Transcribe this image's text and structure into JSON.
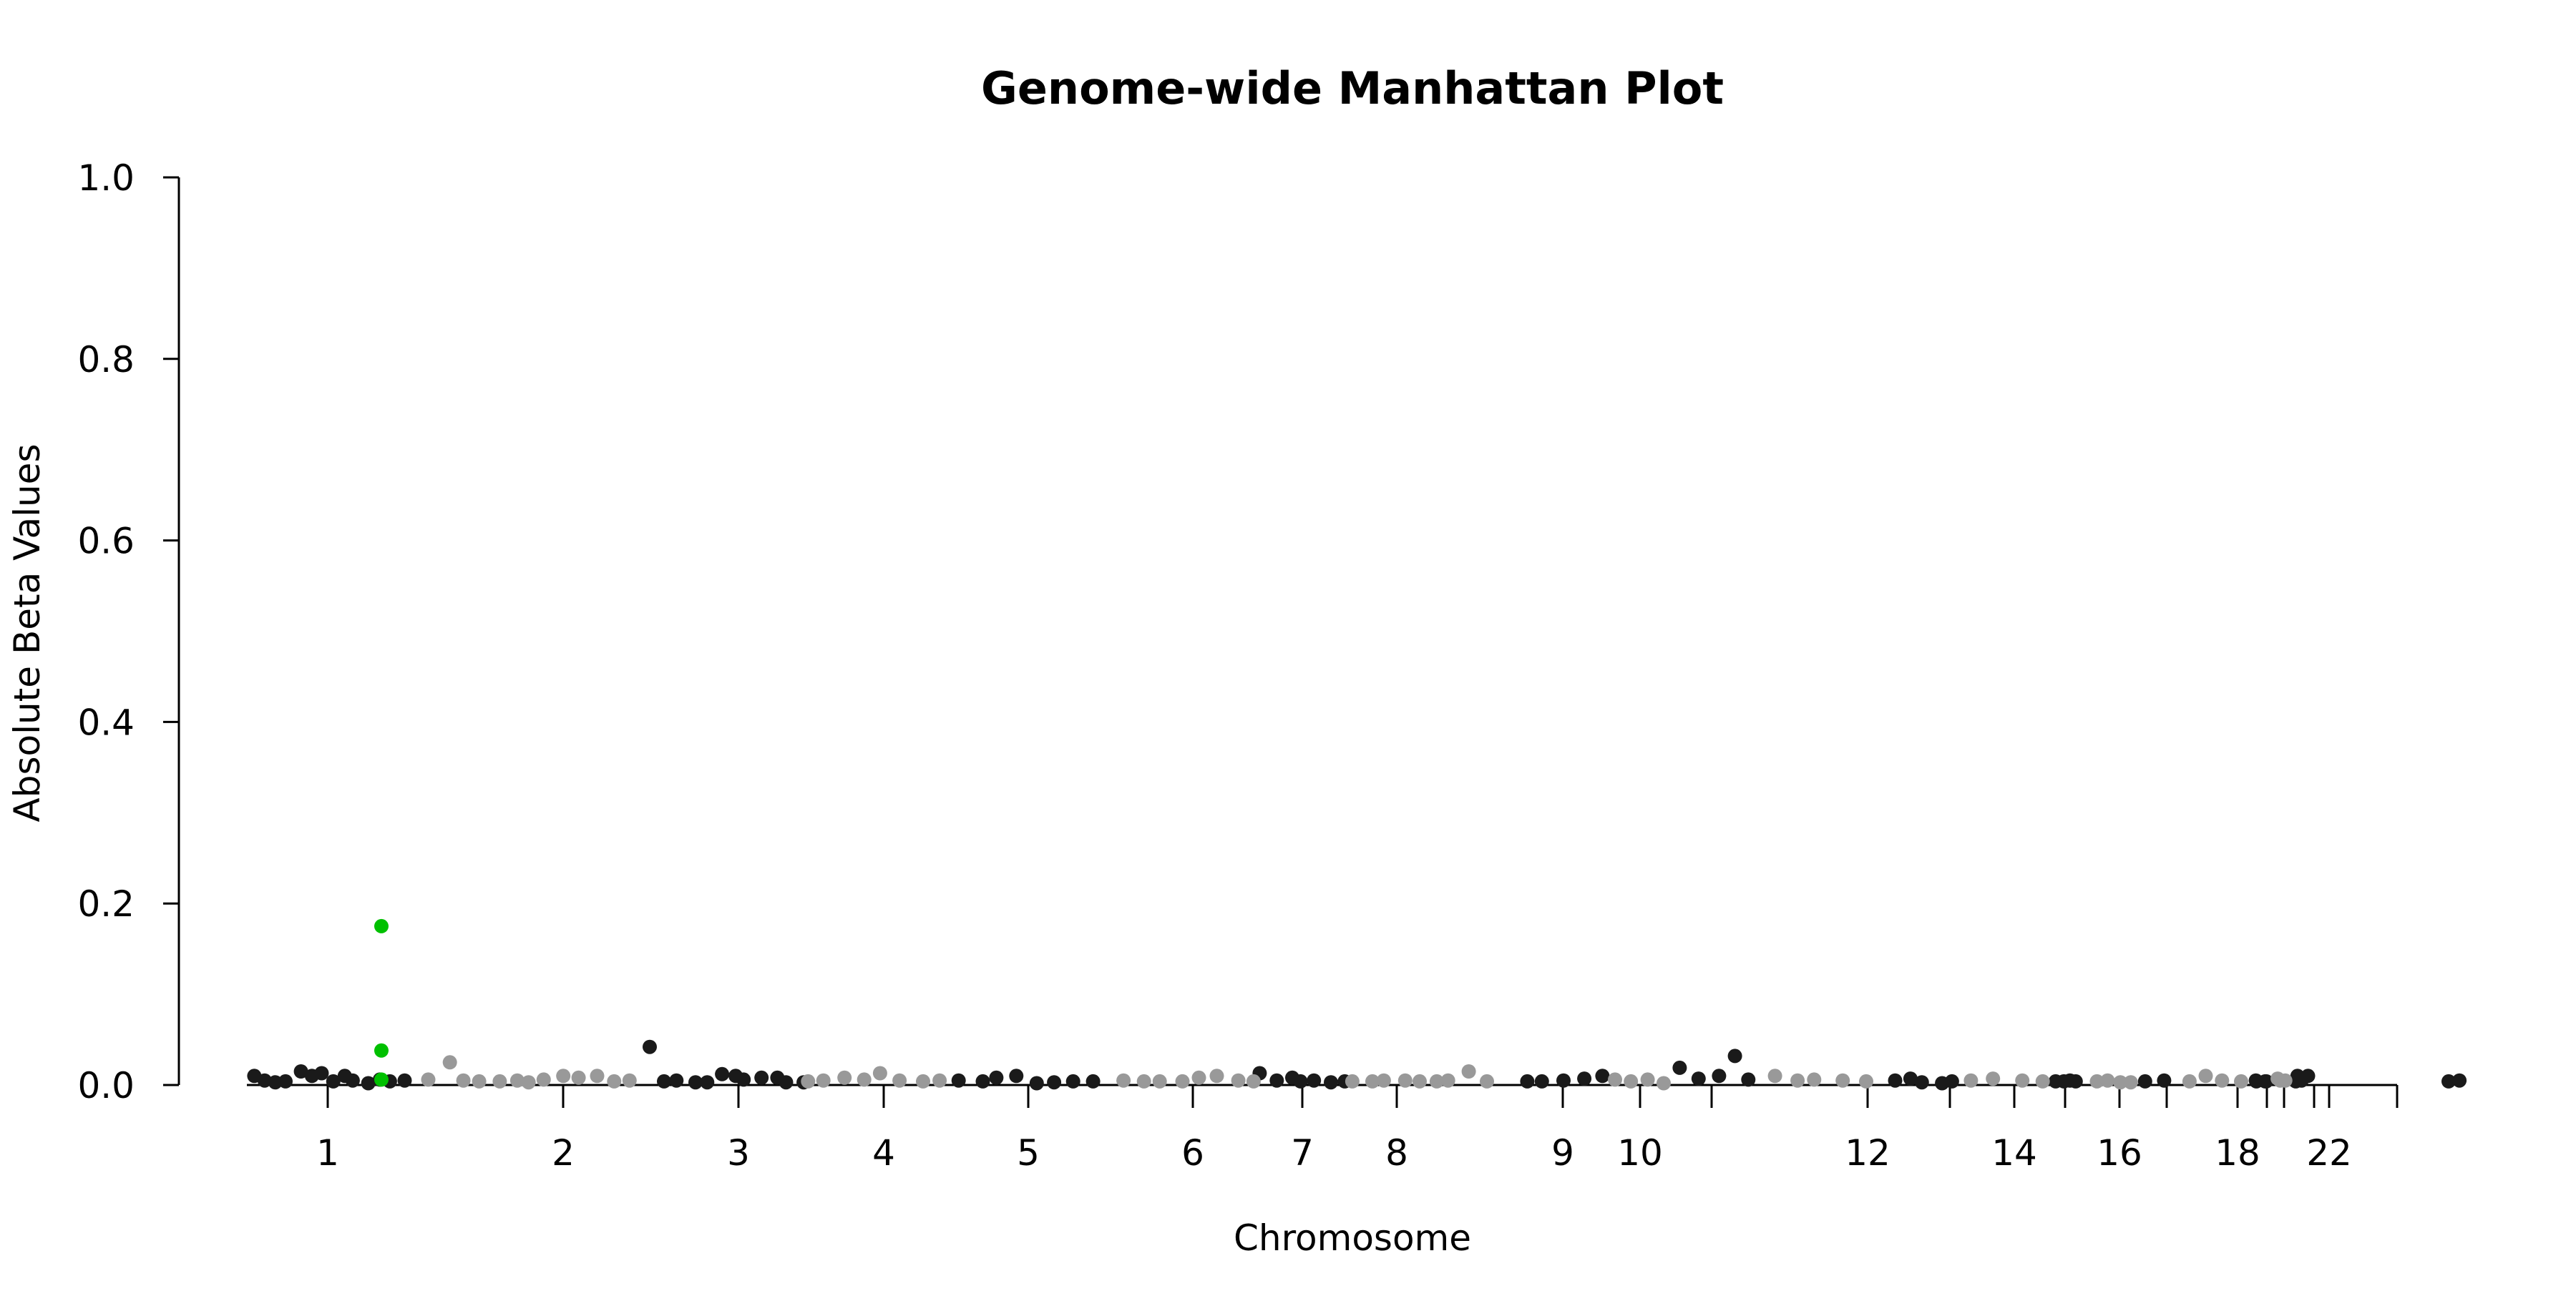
{
  "chart_data": {
    "type": "scatter",
    "title": "Genome-wide Manhattan Plot",
    "xlabel": "Chromosome",
    "ylabel": "Absolute Beta Values",
    "ylim": [
      0,
      1.0
    ],
    "yticks": [
      "0.0",
      "0.2",
      "0.4",
      "0.6",
      "0.8",
      "1.0"
    ],
    "xtick_labels": [
      "1",
      "2",
      "3",
      "4",
      "5",
      "6",
      "7",
      "8",
      "9",
      "10",
      "12",
      "14",
      "16",
      "18",
      "22"
    ],
    "grid": false,
    "legend": "none",
    "colors": {
      "dark": "#1a1a1a",
      "light": "#999999",
      "highlight": "#00c000"
    },
    "series": [
      {
        "color_key": "dark",
        "points": [
          [
            1,
            0.01
          ],
          [
            1,
            0.005
          ],
          [
            1,
            0.003
          ],
          [
            1,
            0.004
          ],
          [
            1,
            0.015
          ],
          [
            1,
            0.01
          ],
          [
            1,
            0.013
          ],
          [
            1,
            0.004
          ],
          [
            1,
            0.01
          ],
          [
            1,
            0.005
          ],
          [
            1,
            0.002
          ],
          [
            1,
            0.006
          ],
          [
            1,
            0.004
          ],
          [
            1,
            0.005
          ],
          [
            3,
            0.042
          ],
          [
            3,
            0.004
          ],
          [
            3,
            0.005
          ],
          [
            3,
            0.003
          ],
          [
            3,
            0.003
          ],
          [
            3,
            0.012
          ],
          [
            3,
            0.01
          ],
          [
            3,
            0.006
          ],
          [
            3,
            0.008
          ],
          [
            3,
            0.008
          ],
          [
            3,
            0.003
          ],
          [
            3,
            0.003
          ],
          [
            5,
            0.005
          ],
          [
            5,
            0.004
          ],
          [
            5,
            0.008
          ],
          [
            5,
            0.01
          ],
          [
            5,
            0.002
          ],
          [
            5,
            0.003
          ],
          [
            5,
            0.004
          ],
          [
            5,
            0.004
          ],
          [
            7,
            0.013
          ],
          [
            7,
            0.005
          ],
          [
            7,
            0.008
          ],
          [
            7,
            0.004
          ],
          [
            7,
            0.005
          ],
          [
            7,
            0.003
          ],
          [
            7,
            0.004
          ],
          [
            9,
            0.004
          ],
          [
            9,
            0.004
          ],
          [
            9,
            0.005
          ],
          [
            9,
            0.007
          ],
          [
            9,
            0.01
          ],
          [
            11,
            0.019
          ],
          [
            11,
            0.007
          ],
          [
            11,
            0.01
          ],
          [
            11,
            0.032
          ],
          [
            11,
            0.006
          ],
          [
            13,
            0.005
          ],
          [
            13,
            0.007
          ],
          [
            13,
            0.003
          ],
          [
            13,
            0.002
          ],
          [
            13,
            0.004
          ],
          [
            15,
            0.004
          ],
          [
            15,
            0.004
          ],
          [
            15,
            0.005
          ],
          [
            15,
            0.004
          ],
          [
            17,
            0.004
          ],
          [
            17,
            0.005
          ],
          [
            19,
            0.004
          ],
          [
            19,
            0.005
          ],
          [
            19,
            0.004
          ],
          [
            19,
            0.004
          ],
          [
            21,
            0.004
          ],
          [
            21,
            0.01
          ],
          [
            21,
            0.005
          ],
          [
            21,
            0.01
          ],
          [
            "X",
            0.004
          ],
          [
            "X",
            0.005
          ]
        ]
      },
      {
        "color_key": "light",
        "points": [
          [
            2,
            0.006
          ],
          [
            2,
            0.025
          ],
          [
            2,
            0.005
          ],
          [
            2,
            0.004
          ],
          [
            2,
            0.004
          ],
          [
            2,
            0.005
          ],
          [
            2,
            0.003
          ],
          [
            2,
            0.006
          ],
          [
            2,
            0.01
          ],
          [
            2,
            0.008
          ],
          [
            2,
            0.01
          ],
          [
            2,
            0.004
          ],
          [
            2,
            0.005
          ],
          [
            4,
            0.004
          ],
          [
            4,
            0.005
          ],
          [
            4,
            0.008
          ],
          [
            4,
            0.006
          ],
          [
            4,
            0.013
          ],
          [
            4,
            0.005
          ],
          [
            4,
            0.004
          ],
          [
            4,
            0.005
          ],
          [
            6,
            0.005
          ],
          [
            6,
            0.004
          ],
          [
            6,
            0.004
          ],
          [
            6,
            0.004
          ],
          [
            6,
            0.008
          ],
          [
            6,
            0.01
          ],
          [
            6,
            0.005
          ],
          [
            6,
            0.004
          ],
          [
            8,
            0.004
          ],
          [
            8,
            0.004
          ],
          [
            8,
            0.005
          ],
          [
            8,
            0.005
          ],
          [
            8,
            0.004
          ],
          [
            8,
            0.004
          ],
          [
            8,
            0.005
          ],
          [
            8,
            0.015
          ],
          [
            8,
            0.004
          ],
          [
            10,
            0.006
          ],
          [
            10,
            0.004
          ],
          [
            10,
            0.006
          ],
          [
            10,
            0.002
          ],
          [
            12,
            0.01
          ],
          [
            12,
            0.005
          ],
          [
            12,
            0.006
          ],
          [
            12,
            0.005
          ],
          [
            12,
            0.004
          ],
          [
            14,
            0.005
          ],
          [
            14,
            0.007
          ],
          [
            14,
            0.005
          ],
          [
            14,
            0.004
          ],
          [
            16,
            0.004
          ],
          [
            16,
            0.005
          ],
          [
            16,
            0.003
          ],
          [
            16,
            0.003
          ],
          [
            18,
            0.004
          ],
          [
            18,
            0.01
          ],
          [
            18,
            0.005
          ],
          [
            18,
            0.004
          ],
          [
            20,
            0.007
          ],
          [
            20,
            0.005
          ],
          [
            20,
            0.005
          ]
        ]
      },
      {
        "color_key": "highlight",
        "points": [
          [
            1,
            0.175
          ],
          [
            1,
            0.038
          ],
          [
            1,
            0.006
          ]
        ]
      }
    ]
  }
}
